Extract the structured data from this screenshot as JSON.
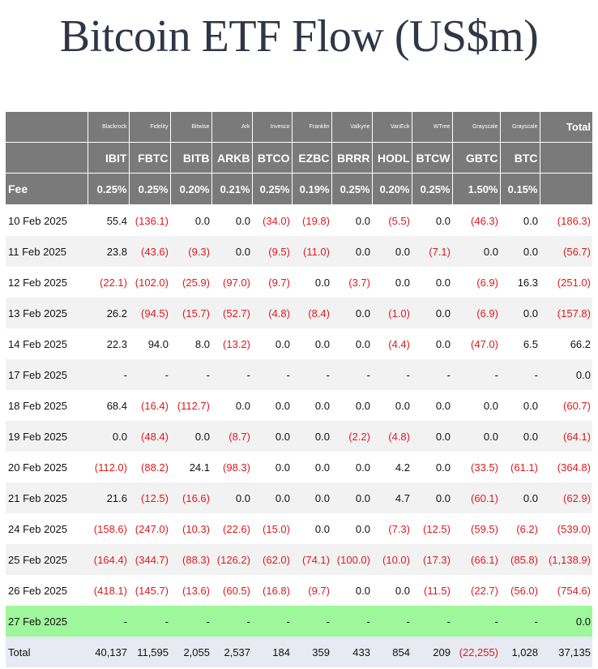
{
  "title": "Bitcoin ETF Flow (US$m)",
  "colors": {
    "header_bg": "#7a7a7a",
    "negative": "#e0191c",
    "highlight_row": "#9ef79a",
    "total_row": "#e7eaf3",
    "alt_row": "#f2f2f2"
  },
  "header": {
    "issuers": [
      "Blackrock",
      "Fidelity",
      "Bitwise",
      "Ark",
      "Invesco",
      "Franklin",
      "Valkyrie",
      "VanEck",
      "WTree",
      "Grayscale",
      "Grayscale"
    ],
    "total_label": "Total",
    "tickers": [
      "IBIT",
      "FBTC",
      "BITB",
      "ARKB",
      "BTCO",
      "EZBC",
      "BRRR",
      "HODL",
      "BTCW",
      "GBTC",
      "BTC"
    ],
    "fee_label": "Fee",
    "fees": [
      "0.25%",
      "0.25%",
      "0.20%",
      "0.21%",
      "0.25%",
      "0.19%",
      "0.25%",
      "0.20%",
      "0.25%",
      "1.50%",
      "0.15%"
    ]
  },
  "rows": [
    {
      "date": "10 Feb 2025",
      "values": [
        "55.4",
        "(136.1)",
        "0.0",
        "0.0",
        "(34.0)",
        "(19.8)",
        "0.0",
        "(5.5)",
        "0.0",
        "(46.3)",
        "0.0"
      ],
      "total": "(186.3)"
    },
    {
      "date": "11 Feb 2025",
      "values": [
        "23.8",
        "(43.6)",
        "(9.3)",
        "0.0",
        "(9.5)",
        "(11.0)",
        "0.0",
        "0.0",
        "(7.1)",
        "0.0",
        "0.0"
      ],
      "total": "(56.7)"
    },
    {
      "date": "12 Feb 2025",
      "values": [
        "(22.1)",
        "(102.0)",
        "(25.9)",
        "(97.0)",
        "(9.7)",
        "0.0",
        "(3.7)",
        "0.0",
        "0.0",
        "(6.9)",
        "16.3"
      ],
      "total": "(251.0)"
    },
    {
      "date": "13 Feb 2025",
      "values": [
        "26.2",
        "(94.5)",
        "(15.7)",
        "(52.7)",
        "(4.8)",
        "(8.4)",
        "0.0",
        "(1.0)",
        "0.0",
        "(6.9)",
        "0.0"
      ],
      "total": "(157.8)"
    },
    {
      "date": "14 Feb 2025",
      "values": [
        "22.3",
        "94.0",
        "8.0",
        "(13.2)",
        "0.0",
        "0.0",
        "0.0",
        "(4.4)",
        "0.0",
        "(47.0)",
        "6.5"
      ],
      "total": "66.2"
    },
    {
      "date": "17 Feb 2025",
      "values": [
        "-",
        "-",
        "-",
        "-",
        "-",
        "-",
        "-",
        "-",
        "-",
        "-",
        "-"
      ],
      "total": "0.0"
    },
    {
      "date": "18 Feb 2025",
      "values": [
        "68.4",
        "(16.4)",
        "(112.7)",
        "0.0",
        "0.0",
        "0.0",
        "0.0",
        "0.0",
        "0.0",
        "0.0",
        "0.0"
      ],
      "total": "(60.7)"
    },
    {
      "date": "19 Feb 2025",
      "values": [
        "0.0",
        "(48.4)",
        "0.0",
        "(8.7)",
        "0.0",
        "0.0",
        "(2.2)",
        "(4.8)",
        "0.0",
        "0.0",
        "0.0"
      ],
      "total": "(64.1)"
    },
    {
      "date": "20 Feb 2025",
      "values": [
        "(112.0)",
        "(88.2)",
        "24.1",
        "(98.3)",
        "0.0",
        "0.0",
        "0.0",
        "4.2",
        "0.0",
        "(33.5)",
        "(61.1)"
      ],
      "total": "(364.8)"
    },
    {
      "date": "21 Feb 2025",
      "values": [
        "21.6",
        "(12.5)",
        "(16.6)",
        "0.0",
        "0.0",
        "0.0",
        "0.0",
        "4.7",
        "0.0",
        "(60.1)",
        "0.0"
      ],
      "total": "(62.9)"
    },
    {
      "date": "24 Feb 2025",
      "values": [
        "(158.6)",
        "(247.0)",
        "(10.3)",
        "(22.6)",
        "(15.0)",
        "0.0",
        "0.0",
        "(7.3)",
        "(12.5)",
        "(59.5)",
        "(6.2)"
      ],
      "total": "(539.0)"
    },
    {
      "date": "25 Feb 2025",
      "values": [
        "(164.4)",
        "(344.7)",
        "(88.3)",
        "(126.2)",
        "(62.0)",
        "(74.1)",
        "(100.0)",
        "(10.0)",
        "(17.3)",
        "(66.1)",
        "(85.8)"
      ],
      "total": "(1,138.9)"
    },
    {
      "date": "26 Feb 2025",
      "values": [
        "(418.1)",
        "(145.7)",
        "(13.6)",
        "(60.5)",
        "(16.8)",
        "(9.7)",
        "0.0",
        "0.0",
        "(11.5)",
        "(22.7)",
        "(56.0)"
      ],
      "total": "(754.6)"
    },
    {
      "date": "27 Feb 2025",
      "values": [
        "-",
        "-",
        "-",
        "-",
        "-",
        "-",
        "-",
        "-",
        "-",
        "-",
        "-"
      ],
      "total": "0.0",
      "highlight": true
    }
  ],
  "totals": {
    "label": "Total",
    "values": [
      "40,137",
      "11,595",
      "2,055",
      "2,537",
      "184",
      "359",
      "433",
      "854",
      "209",
      "(22,255)",
      "1,028"
    ],
    "total": "37,135"
  }
}
